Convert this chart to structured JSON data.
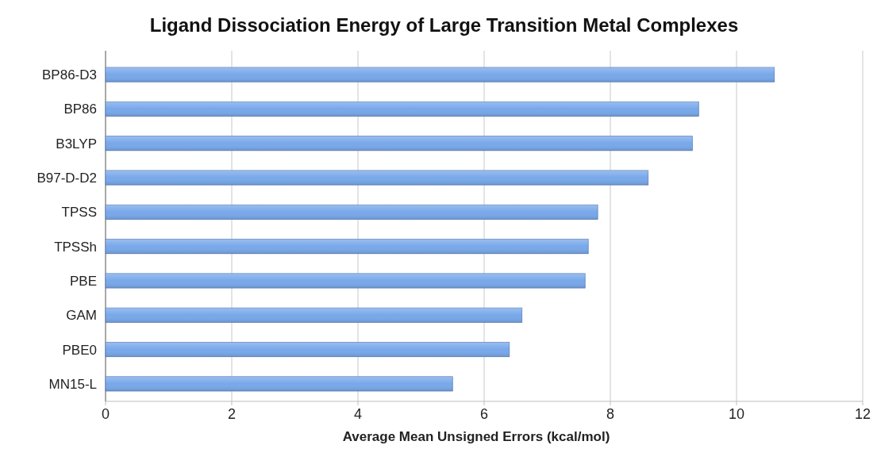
{
  "chart_data": {
    "type": "bar",
    "orientation": "horizontal",
    "title": "Ligand Dissociation Energy of Large Transition Metal Complexes",
    "xlabel": "Average Mean Unsigned Errors (kcal/mol)",
    "categories": [
      "BP86-D3",
      "BP86",
      "B3LYP",
      "B97-D-D2",
      "TPSS",
      "TPSSh",
      "PBE",
      "GAM",
      "PBE0",
      "MN15-L"
    ],
    "values": [
      10.6,
      9.4,
      9.3,
      8.6,
      7.8,
      7.65,
      7.6,
      6.6,
      6.4,
      5.5
    ],
    "color": "#78a8ea",
    "xlim": [
      0,
      12
    ],
    "xticks": [
      0,
      2,
      4,
      6,
      8,
      10,
      12
    ],
    "grid": "x"
  }
}
